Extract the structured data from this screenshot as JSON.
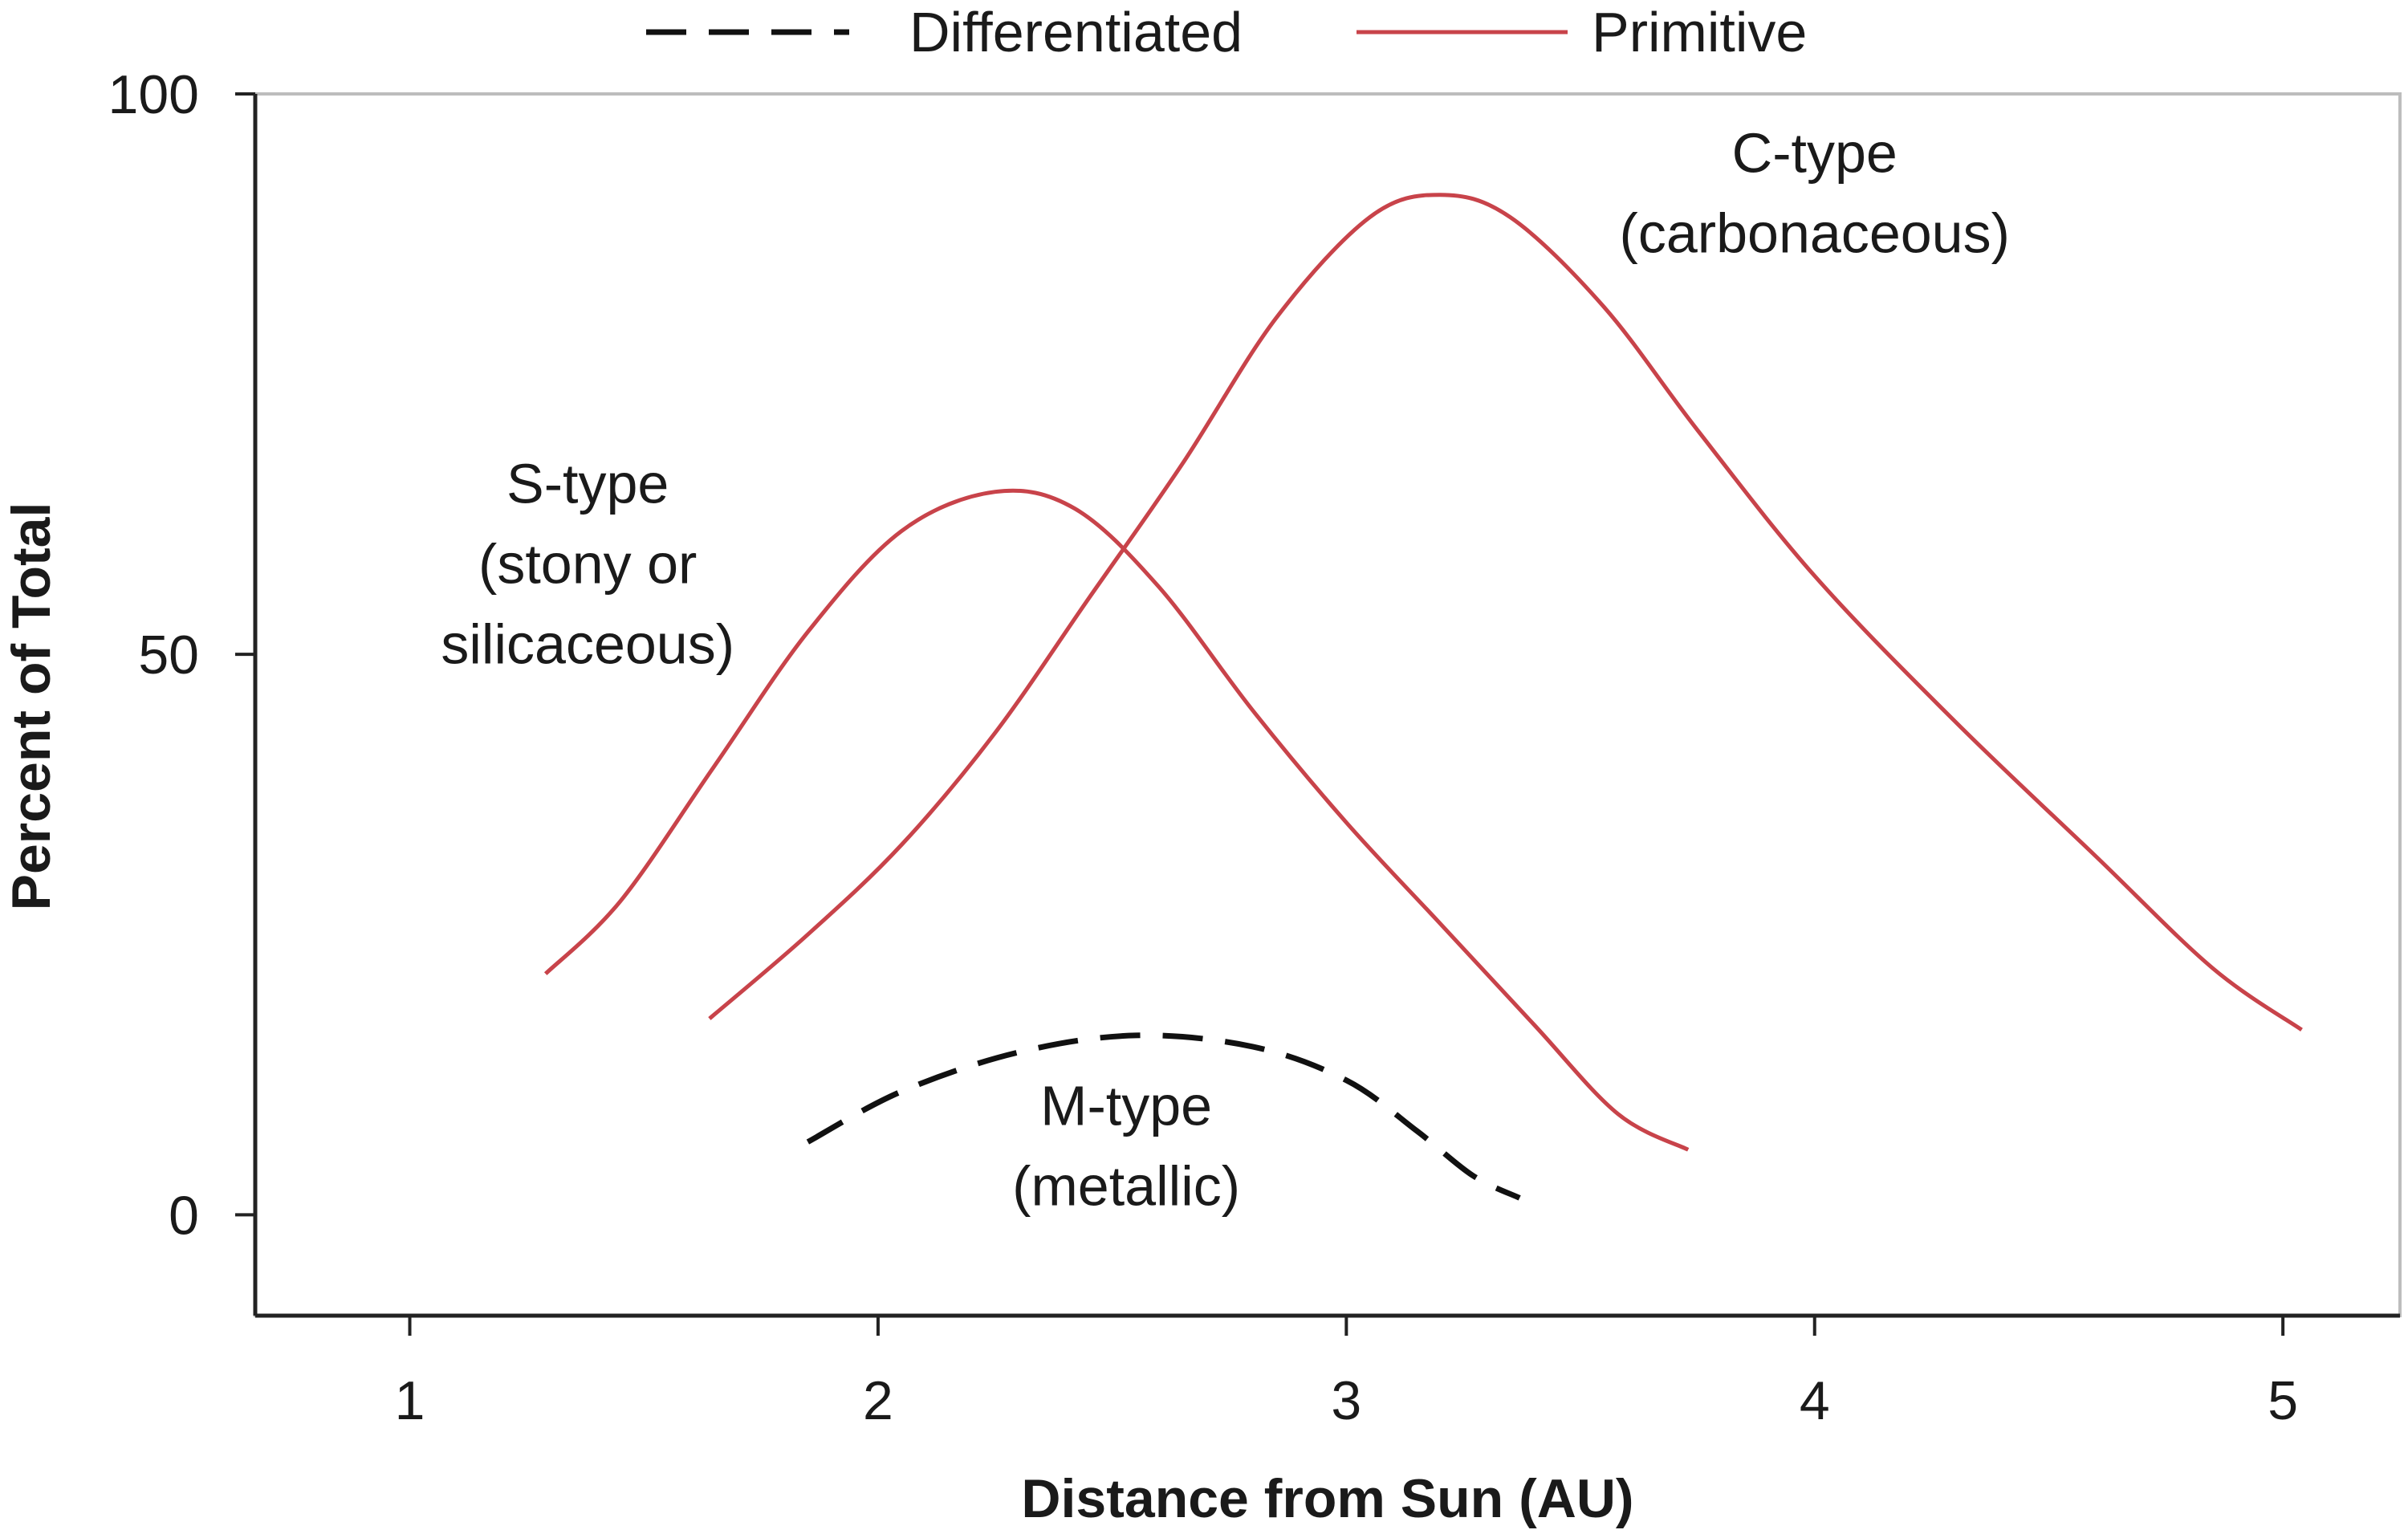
{
  "chart_data": {
    "type": "line",
    "xlabel": "Distance from Sun (AU)",
    "ylabel": "Percent of Total",
    "xlim": [
      0.67,
      5.25
    ],
    "ylim": [
      -9,
      100
    ],
    "xticks": [
      "1",
      "2",
      "3",
      "4",
      "5"
    ],
    "yticks": [
      "0",
      "50",
      "100"
    ],
    "grid": false,
    "legend_position": "top",
    "legend": [
      {
        "label": "Differentiated",
        "style": "dashed",
        "color": "#111111"
      },
      {
        "label": "Primitive",
        "style": "solid",
        "color": "#c8434a"
      }
    ],
    "series": [
      {
        "group": "Primitive",
        "color": "#c8434a",
        "dash": false,
        "points": [
          [
            1.29,
            21.5
          ],
          [
            1.45,
            28
          ],
          [
            1.65,
            40
          ],
          [
            1.85,
            52
          ],
          [
            2.05,
            61
          ],
          [
            2.25,
            64.5
          ],
          [
            2.42,
            63
          ],
          [
            2.6,
            56
          ],
          [
            2.8,
            45
          ],
          [
            3.0,
            35
          ],
          [
            3.2,
            26
          ],
          [
            3.4,
            17
          ],
          [
            3.58,
            9
          ],
          [
            3.73,
            5.8
          ]
        ]
      },
      {
        "group": "Primitive",
        "color": "#c8434a",
        "dash": false,
        "points": [
          [
            1.64,
            17.5
          ],
          [
            1.85,
            25
          ],
          [
            2.05,
            33
          ],
          [
            2.25,
            43
          ],
          [
            2.45,
            55
          ],
          [
            2.65,
            67
          ],
          [
            2.85,
            80
          ],
          [
            3.05,
            89
          ],
          [
            3.2,
            91
          ],
          [
            3.35,
            89
          ],
          [
            3.55,
            81
          ],
          [
            3.75,
            70
          ],
          [
            4.0,
            57
          ],
          [
            4.3,
            44
          ],
          [
            4.6,
            32
          ],
          [
            4.85,
            22
          ],
          [
            5.04,
            16.5
          ]
        ]
      },
      {
        "group": "Differentiated",
        "color": "#111111",
        "dash": true,
        "points": [
          [
            1.85,
            6.5
          ],
          [
            2.05,
            11
          ],
          [
            2.3,
            14.5
          ],
          [
            2.55,
            16
          ],
          [
            2.8,
            15
          ],
          [
            3.0,
            12
          ],
          [
            3.15,
            7.5
          ],
          [
            3.27,
            3.5
          ],
          [
            3.37,
            1.5
          ]
        ]
      }
    ],
    "annotations": [
      {
        "lines": [
          "S-type",
          "(stony or",
          "silicaceous)"
        ],
        "x": 1.38,
        "y": 63.5
      },
      {
        "lines": [
          "C-type",
          "(carbonaceous)"
        ],
        "x": 4.0,
        "y": 93
      },
      {
        "lines": [
          "M-type",
          "(metallic)"
        ],
        "x": 2.53,
        "y": 8
      }
    ]
  }
}
